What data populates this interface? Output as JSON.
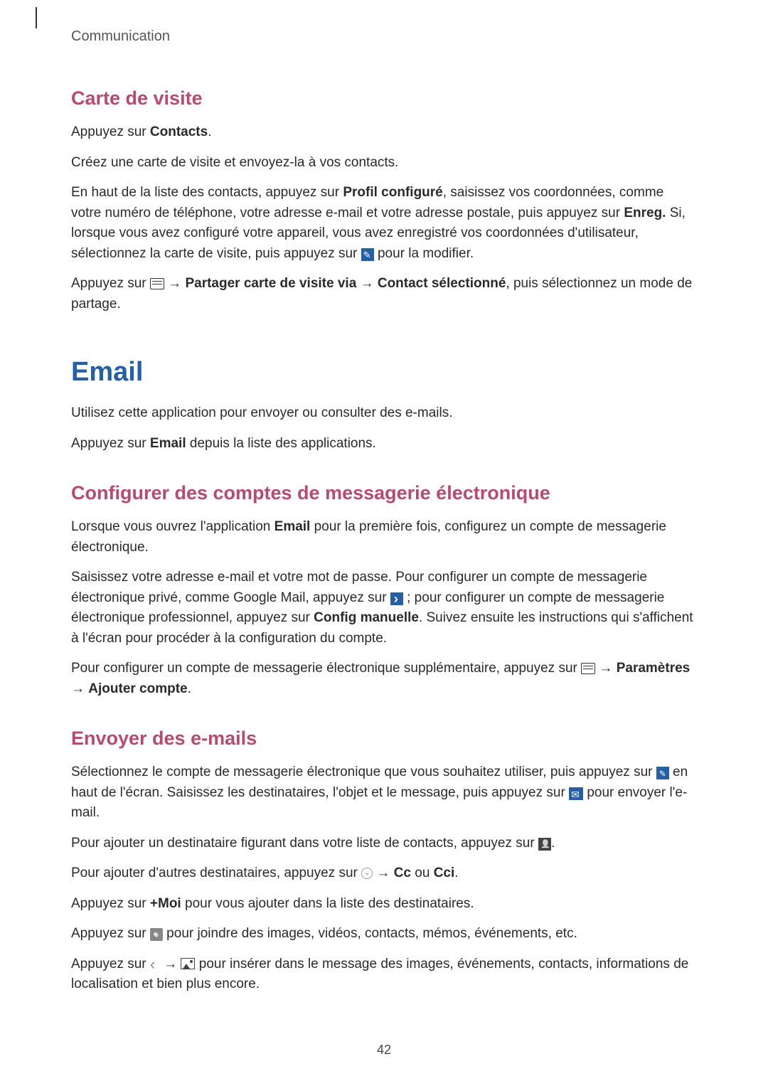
{
  "header": {
    "section_label": "Communication"
  },
  "carte_visite": {
    "heading": "Carte de visite",
    "p1_pre": "Appuyez sur ",
    "p1_bold": "Contacts",
    "p1_post": ".",
    "p2": "Créez une carte de visite et envoyez-la à vos contacts.",
    "p3_pre": "En haut de la liste des contacts, appuyez sur ",
    "p3_bold1": "Profil configuré",
    "p3_mid": ", saisissez vos coordonnées, comme votre numéro de téléphone, votre adresse e-mail et votre adresse postale, puis appuyez sur ",
    "p3_bold2": "Enreg.",
    "p3_post": " Si, lorsque vous avez configuré votre appareil, vous avez enregistré vos coordonnées d'utilisateur, sélectionnez la carte de visite, puis appuyez sur ",
    "p3_end": " pour la modifier.",
    "p4_pre": "Appuyez sur ",
    "p4_arrow1": " → ",
    "p4_bold1": "Partager carte de visite via",
    "p4_arrow2": " → ",
    "p4_bold2": "Contact sélectionné",
    "p4_post": ", puis sélectionnez un mode de partage."
  },
  "email": {
    "heading": "Email",
    "p1": "Utilisez cette application pour envoyer ou consulter des e-mails.",
    "p2_pre": "Appuyez sur ",
    "p2_bold": "Email",
    "p2_post": " depuis la liste des applications."
  },
  "configurer": {
    "heading": "Configurer des comptes de messagerie électronique",
    "p1_pre": "Lorsque vous ouvrez l'application ",
    "p1_bold": "Email",
    "p1_post": " pour la première fois, configurez un compte de messagerie électronique.",
    "p2_pre": "Saisissez votre adresse e-mail et votre mot de passe. Pour configurer un compte de messagerie électronique privé, comme Google Mail, appuyez sur ",
    "p2_mid": " ; pour configurer un compte de messagerie électronique professionnel, appuyez sur ",
    "p2_bold": "Config manuelle",
    "p2_post": ". Suivez ensuite les instructions qui s'affichent à l'écran pour procéder à la configuration du compte.",
    "p3_pre": "Pour configurer un compte de messagerie électronique supplémentaire, appuyez sur ",
    "p3_arrow": " → ",
    "p3_bold1": "Paramètres",
    "p3_arrow2": " → ",
    "p3_bold2": "Ajouter compte",
    "p3_post": "."
  },
  "envoyer": {
    "heading": "Envoyer des e-mails",
    "p1_pre": "Sélectionnez le compte de messagerie électronique que vous souhaitez utiliser, puis appuyez sur ",
    "p1_mid": " en haut de l'écran. Saisissez les destinataires, l'objet et le message, puis appuyez sur ",
    "p1_post": " pour envoyer l'e-mail.",
    "p2_pre": "Pour ajouter un destinataire figurant dans votre liste de contacts, appuyez sur ",
    "p2_post": ".",
    "p3_pre": "Pour ajouter d'autres destinataires, appuyez sur ",
    "p3_arrow": " → ",
    "p3_bold1": "Cc",
    "p3_ou": " ou ",
    "p3_bold2": "Cci",
    "p3_post": ".",
    "p4_pre": "Appuyez sur ",
    "p4_bold": "+Moi",
    "p4_post": " pour vous ajouter dans la liste des destinataires.",
    "p5_pre": "Appuyez sur ",
    "p5_post": " pour joindre des images, vidéos, contacts, mémos, événements, etc.",
    "p6_pre": "Appuyez sur ",
    "p6_arrow": " → ",
    "p6_post": " pour insérer dans le message des images, événements, contacts, informations de localisation et bien plus encore."
  },
  "page_number": "42",
  "styles": {
    "h2_color": "#b74a6f",
    "h1_color": "#2560a6",
    "body_text_color": "#2a2a2a",
    "icon_blue_bg": "#2560a6"
  }
}
